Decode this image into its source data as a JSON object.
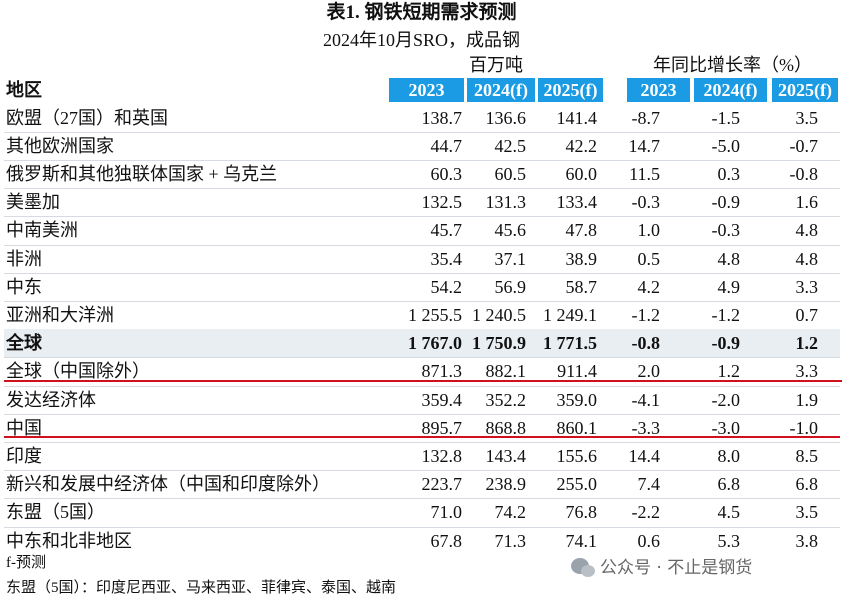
{
  "header": {
    "title": "表1. 钢铁短期需求预测",
    "subtitle": "2024年10月SRO，成品钢"
  },
  "table": {
    "groups": [
      "百万吨",
      "年同比增长率（%）"
    ],
    "columns": [
      "地区",
      "2023",
      "2024(f)",
      "2025(f)",
      "2023",
      "2024(f)",
      "2025(f)"
    ],
    "rows": [
      [
        "欧盟（27国）和英国",
        "138.7",
        "136.6",
        "141.4",
        "-8.7",
        "-1.5",
        "3.5"
      ],
      [
        "其他欧洲国家",
        "44.7",
        "42.5",
        "42.2",
        "14.7",
        "-5.0",
        "-0.7"
      ],
      [
        "俄罗斯和其他独联体国家 + 乌克兰",
        "60.3",
        "60.5",
        "60.0",
        "11.5",
        "0.3",
        "-0.8"
      ],
      [
        "美墨加",
        "132.5",
        "131.3",
        "133.4",
        "-0.3",
        "-0.9",
        "1.6"
      ],
      [
        "中南美洲",
        "45.7",
        "45.6",
        "47.8",
        "1.0",
        "-0.3",
        "4.8"
      ],
      [
        "非洲",
        "35.4",
        "37.1",
        "38.9",
        "0.5",
        "4.8",
        "4.8"
      ],
      [
        "中东",
        "54.2",
        "56.9",
        "58.7",
        "4.2",
        "4.9",
        "3.3"
      ],
      [
        "亚洲和大洋洲",
        "1 255.5",
        "1 240.5",
        "1 249.1",
        "-1.2",
        "-1.2",
        "0.7"
      ],
      [
        "全球",
        "1 767.0",
        "1 750.9",
        "1 771.5",
        "-0.8",
        "-0.9",
        "1.2"
      ],
      [
        "全球（中国除外）",
        "871.3",
        "882.1",
        "911.4",
        "2.0",
        "1.2",
        "3.3"
      ],
      [
        "发达经济体",
        "359.4",
        "352.2",
        "359.0",
        "-4.1",
        "-2.0",
        "1.9"
      ],
      [
        "中国",
        "895.7",
        "868.8",
        "860.1",
        "-3.3",
        "-3.0",
        "-1.0"
      ],
      [
        "印度",
        "132.8",
        "143.4",
        "155.6",
        "14.4",
        "8.0",
        "8.5"
      ],
      [
        "新兴和发展中经济体（中国和印度除外）",
        "223.7",
        "238.9",
        "255.0",
        "7.4",
        "6.8",
        "6.8"
      ],
      [
        "东盟（5国）",
        "71.0",
        "74.2",
        "76.8",
        "-2.2",
        "4.5",
        "3.5"
      ],
      [
        "中东和北非地区",
        "67.8",
        "71.3",
        "74.1",
        "0.6",
        "5.3",
        "3.8"
      ]
    ]
  },
  "footnotes": [
    "f-预测",
    "东盟（5国）：印度尼西亚、马来西亚、菲律宾、泰国、越南"
  ],
  "watermark": "公众号 · 不止是钢货"
}
